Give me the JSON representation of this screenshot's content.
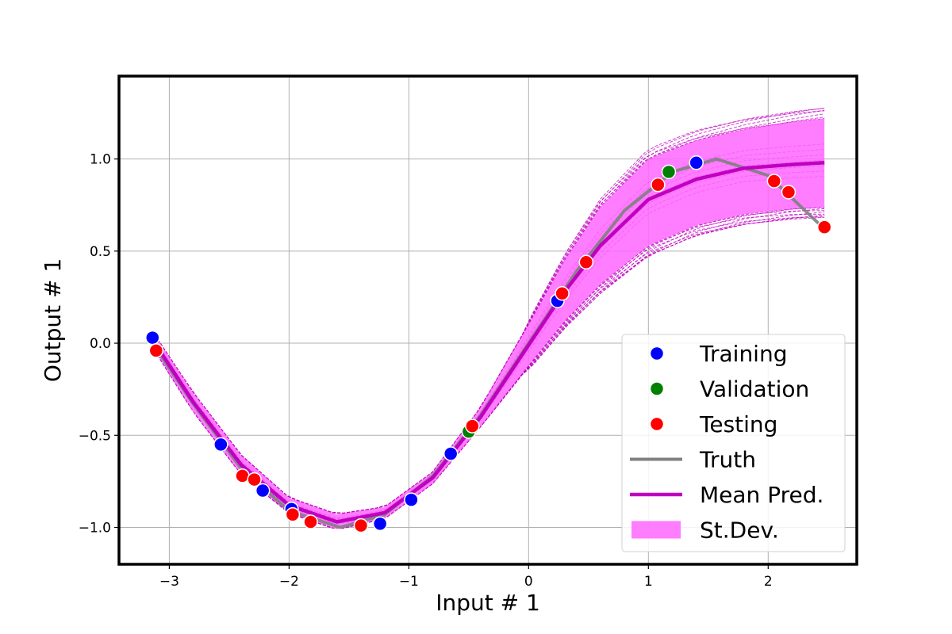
{
  "chart_data": {
    "type": "scatter",
    "title": "",
    "xlabel": "Input # 1",
    "ylabel": "Output # 1",
    "xlim": [
      -3.42,
      2.74
    ],
    "ylim": [
      -1.2,
      1.45
    ],
    "grid": true,
    "x_ticks": [
      -3,
      -2,
      -1,
      0,
      1,
      2
    ],
    "y_ticks": [
      -1.0,
      -0.5,
      0.0,
      0.5,
      1.0
    ],
    "x_tick_labels": [
      "−3",
      "−2",
      "−1",
      "0",
      "1",
      "2"
    ],
    "y_tick_labels": [
      "−1.0",
      "−0.5",
      "0.0",
      "0.5",
      "1.0"
    ],
    "legend": {
      "placement": "lower-right",
      "entries": [
        "Training",
        "Validation",
        "Testing",
        "Truth",
        "Mean Pred.",
        "St.Dev."
      ]
    },
    "colors": {
      "training": "#0000ff",
      "validation": "#008000",
      "testing": "#ff0000",
      "truth": "#808080",
      "mean": "#bf00bf",
      "stdev": "#ff66ff",
      "samples": "#bf00bf"
    },
    "series": [
      {
        "name": "Training",
        "marker": "circle",
        "points": [
          {
            "x": -3.14,
            "y": 0.03
          },
          {
            "x": -2.57,
            "y": -0.55
          },
          {
            "x": -2.22,
            "y": -0.8
          },
          {
            "x": -1.98,
            "y": -0.9
          },
          {
            "x": -1.24,
            "y": -0.98
          },
          {
            "x": -0.98,
            "y": -0.85
          },
          {
            "x": -0.65,
            "y": -0.6
          },
          {
            "x": 0.24,
            "y": 0.23
          },
          {
            "x": 1.4,
            "y": 0.98
          }
        ]
      },
      {
        "name": "Validation",
        "marker": "circle",
        "points": [
          {
            "x": -0.5,
            "y": -0.48
          },
          {
            "x": 1.17,
            "y": 0.93
          }
        ]
      },
      {
        "name": "Testing",
        "marker": "circle",
        "points": [
          {
            "x": -3.11,
            "y": -0.04
          },
          {
            "x": -2.39,
            "y": -0.72
          },
          {
            "x": -2.29,
            "y": -0.74
          },
          {
            "x": -1.97,
            "y": -0.93
          },
          {
            "x": -1.82,
            "y": -0.97
          },
          {
            "x": -1.4,
            "y": -0.99
          },
          {
            "x": -0.47,
            "y": -0.45
          },
          {
            "x": 0.28,
            "y": 0.27
          },
          {
            "x": 0.48,
            "y": 0.44
          },
          {
            "x": 1.08,
            "y": 0.86
          },
          {
            "x": 2.05,
            "y": 0.88
          },
          {
            "x": 2.17,
            "y": 0.82
          },
          {
            "x": 2.47,
            "y": 0.63
          }
        ]
      },
      {
        "name": "Truth",
        "type": "line",
        "x": [
          -3.14,
          -2.8,
          -2.4,
          -2.0,
          -1.57,
          -1.2,
          -0.8,
          -0.4,
          0.0,
          0.4,
          0.8,
          1.2,
          1.57,
          2.0,
          2.47
        ],
        "y": [
          0.0,
          -0.33,
          -0.68,
          -0.91,
          -1.0,
          -0.93,
          -0.72,
          -0.39,
          0.0,
          0.39,
          0.72,
          0.93,
          1.0,
          0.91,
          0.62
        ]
      },
      {
        "name": "Mean Pred.",
        "type": "line",
        "x": [
          -3.14,
          -2.8,
          -2.4,
          -2.0,
          -1.6,
          -1.2,
          -0.8,
          -0.4,
          0.0,
          0.3,
          0.6,
          1.0,
          1.4,
          1.8,
          2.2,
          2.47
        ],
        "y": [
          0.02,
          -0.32,
          -0.66,
          -0.88,
          -0.97,
          -0.92,
          -0.73,
          -0.4,
          -0.01,
          0.28,
          0.53,
          0.78,
          0.89,
          0.95,
          0.97,
          0.98
        ]
      },
      {
        "name": "St.Dev.",
        "type": "band",
        "x": [
          -3.14,
          -2.8,
          -2.4,
          -2.0,
          -1.6,
          -1.2,
          -0.8,
          -0.4,
          0.0,
          0.3,
          0.6,
          1.0,
          1.4,
          1.8,
          2.2,
          2.47
        ],
        "lower": [
          -0.02,
          -0.37,
          -0.71,
          -0.92,
          -1.01,
          -0.95,
          -0.76,
          -0.45,
          -0.12,
          0.12,
          0.32,
          0.53,
          0.64,
          0.7,
          0.73,
          0.74
        ],
        "upper": [
          0.06,
          -0.27,
          -0.61,
          -0.84,
          -0.93,
          -0.89,
          -0.7,
          -0.35,
          0.1,
          0.45,
          0.74,
          1.0,
          1.1,
          1.16,
          1.2,
          1.22
        ]
      }
    ]
  }
}
